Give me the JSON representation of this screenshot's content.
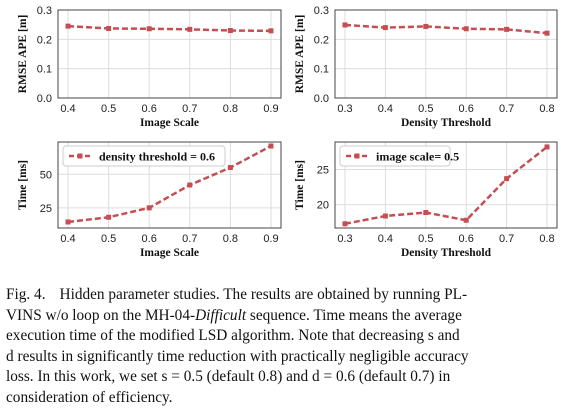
{
  "colors": {
    "series": "#c44e52",
    "grid": "#dddddd",
    "axis": "#444444"
  },
  "chart_data": [
    {
      "type": "line",
      "x": [
        0.4,
        0.5,
        0.6,
        0.7,
        0.8,
        0.9
      ],
      "xticks": [
        "0.4",
        "0.5",
        "0.6",
        "0.7",
        "0.8",
        "0.9"
      ],
      "series": [
        {
          "values": [
            0.245,
            0.237,
            0.236,
            0.234,
            0.23,
            0.229
          ]
        }
      ],
      "xlabel": "Image Scale",
      "ylabel": "RMSE APE [m]",
      "ylim": [
        0.0,
        0.3
      ],
      "yticks": [
        "0.0",
        "0.1",
        "0.2",
        "0.3"
      ],
      "grid": true
    },
    {
      "type": "line",
      "x": [
        0.3,
        0.4,
        0.5,
        0.6,
        0.7,
        0.8
      ],
      "xticks": [
        "0.3",
        "0.4",
        "0.5",
        "0.6",
        "0.7",
        "0.8"
      ],
      "series": [
        {
          "values": [
            0.249,
            0.24,
            0.244,
            0.236,
            0.234,
            0.221
          ]
        }
      ],
      "xlabel": "Density Threshold",
      "ylabel": "RMSE APE [m]",
      "ylim": [
        0.0,
        0.3
      ],
      "yticks": [
        "0.0",
        "0.1",
        "0.2",
        "0.3"
      ],
      "grid": true
    },
    {
      "type": "line",
      "x": [
        0.4,
        0.5,
        0.6,
        0.7,
        0.8,
        0.9
      ],
      "xticks": [
        "0.4",
        "0.5",
        "0.6",
        "0.7",
        "0.8",
        "0.9"
      ],
      "series": [
        {
          "name": "density threshold = 0.6",
          "values": [
            14.5,
            18.0,
            25.0,
            42.0,
            55.0,
            71.0
          ]
        }
      ],
      "xlabel": "Image Scale",
      "ylabel": "Time [ms]",
      "ylim": [
        10,
        74
      ],
      "yticks": [
        "25",
        "50"
      ],
      "legend": "top-left",
      "grid": true
    },
    {
      "type": "line",
      "x": [
        0.3,
        0.4,
        0.5,
        0.6,
        0.7,
        0.8
      ],
      "xticks": [
        "0.3",
        "0.4",
        "0.5",
        "0.6",
        "0.7",
        "0.8"
      ],
      "series": [
        {
          "name": "image scale= 0.5",
          "values": [
            17.3,
            18.4,
            18.9,
            17.8,
            23.7,
            28.2
          ]
        }
      ],
      "xlabel": "Density Threshold",
      "ylabel": "Time [ms]",
      "ylim": [
        16.7,
        28.9
      ],
      "yticks": [
        "20",
        "25"
      ],
      "legend": "top-left",
      "grid": true
    }
  ],
  "caption": {
    "label": "Fig. 4.",
    "line1": "Hidden parameter studies. The results are obtained by running PL-",
    "line2a": "VINS w/o loop on the MH-04-",
    "line2_italic": "Difficult",
    "line2b": " sequence. Time means the average",
    "line3": "execution time of the modified LSD algorithm. Note that decreasing s and",
    "line4": "d results in significantly time reduction with practically negligible accuracy",
    "line5": "loss. In this work, we set s = 0.5 (default 0.8) and d = 0.6 (default 0.7) in",
    "line6": "consideration of efficiency."
  }
}
